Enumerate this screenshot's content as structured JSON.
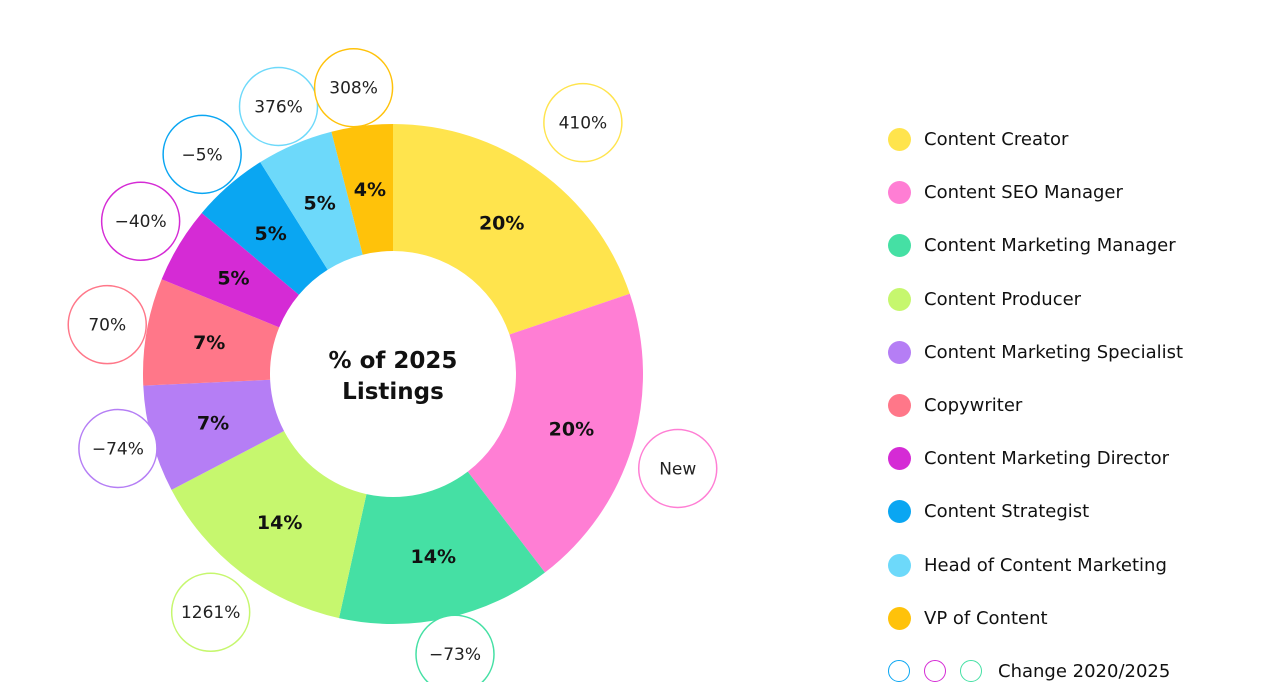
{
  "chart_data": {
    "type": "donut",
    "title": "% of 2025 Listings",
    "categories": [
      "Content Creator",
      "Content SEO Manager",
      "Content Marketing Manager",
      "Content Producer",
      "Content Marketing Specialist",
      "Copywriter",
      "Content Marketing Director",
      "Content Strategist",
      "Head of Content Marketing",
      "VP of Content"
    ],
    "values": [
      20,
      20,
      14,
      14,
      7,
      7,
      5,
      5,
      5,
      4
    ],
    "value_labels": [
      "20%",
      "20%",
      "14%",
      "14%",
      "7%",
      "7%",
      "5%",
      "5%",
      "5%",
      "4%"
    ],
    "change_labels": [
      "410%",
      "New",
      "−73%",
      "1261%",
      "−74%",
      "70%",
      "−40%",
      "−5%",
      "376%",
      "308%"
    ],
    "colors": [
      "#FFE44D",
      "#FF7ED4",
      "#45E0A4",
      "#C6F76E",
      "#B57EF5",
      "#FF7789",
      "#D52BD5",
      "#0AA6F2",
      "#6DD9FA",
      "#FFC20A"
    ],
    "legend_placement": "right",
    "change_legend_label": "Change 2020/2025",
    "change_legend_colors": [
      "#0AA6F2",
      "#D52BD5",
      "#45E0A4"
    ]
  }
}
